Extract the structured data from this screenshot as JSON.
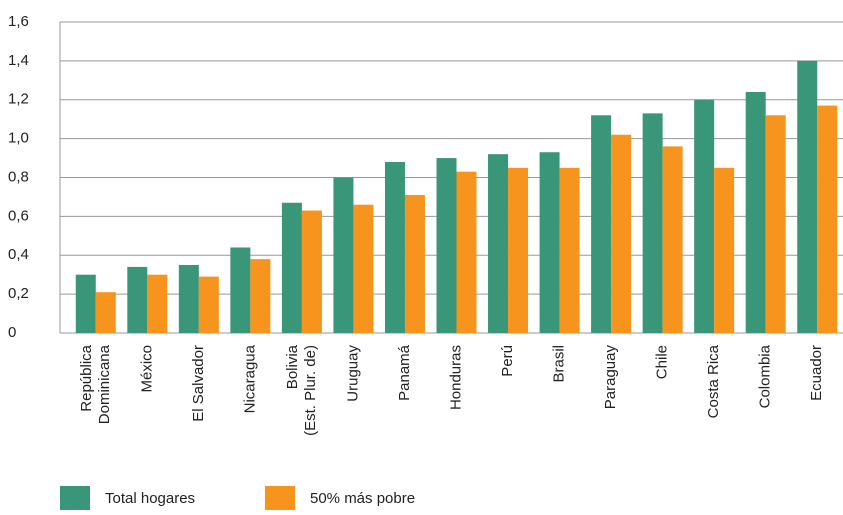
{
  "chart_data": {
    "type": "bar",
    "categories": [
      "República\nDominicana",
      "México",
      "El Salvador",
      "Nicaragua",
      "Bolivia\n(Est. Plur. de)",
      "Uruguay",
      "Panamá",
      "Honduras",
      "Perú",
      "Brasil",
      "Paraguay",
      "Chile",
      "Costa Rica",
      "Colombia",
      "Ecuador"
    ],
    "series": [
      {
        "name": "Total hogares",
        "color": "#3a9679",
        "values": [
          0.3,
          0.34,
          0.35,
          0.44,
          0.67,
          0.8,
          0.88,
          0.9,
          0.92,
          0.93,
          1.12,
          1.13,
          1.2,
          1.24,
          1.4
        ]
      },
      {
        "name": "50% más pobre",
        "color": "#f7941d",
        "values": [
          0.21,
          0.3,
          0.29,
          0.38,
          0.63,
          0.66,
          0.71,
          0.83,
          0.85,
          0.85,
          1.02,
          0.96,
          0.85,
          1.12,
          1.17
        ]
      }
    ],
    "ylim": [
      0,
      1.6
    ],
    "yticks": [
      0,
      {
        "value": 0.2,
        "label": "0,2"
      },
      {
        "value": 0.4,
        "label": "0,4"
      },
      {
        "value": 0.6,
        "label": "0,6"
      },
      {
        "value": 0.8,
        "label": "0,8"
      },
      {
        "value": 1.0,
        "label": "1,0"
      },
      {
        "value": 1.2,
        "label": "1,2"
      },
      {
        "value": 1.4,
        "label": "1,4"
      },
      {
        "value": 1.6,
        "label": "1,6"
      }
    ],
    "grid": true,
    "legend": "bottom-left"
  }
}
